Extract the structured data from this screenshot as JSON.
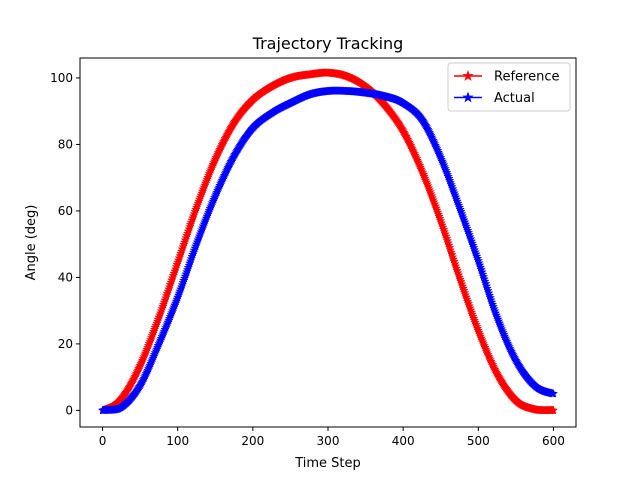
{
  "chart_data": {
    "type": "line",
    "title": "Trajectory Tracking",
    "xlabel": "Time Step",
    "ylabel": "Angle (deg)",
    "xlim": [
      -30,
      630
    ],
    "ylim": [
      -5,
      106
    ],
    "xticks": [
      0,
      100,
      200,
      300,
      400,
      500,
      600
    ],
    "xtick_labels": [
      "0",
      "100",
      "200",
      "300",
      "400",
      "500",
      "600"
    ],
    "yticks": [
      0,
      20,
      40,
      60,
      80,
      100
    ],
    "ytick_labels": [
      "0",
      "20",
      "40",
      "60",
      "80",
      "100"
    ],
    "grid": false,
    "legend_position": "top-right",
    "marker": "star",
    "series": [
      {
        "name": "Reference",
        "color": "#ff0000",
        "x": [
          0,
          25,
          50,
          75,
          100,
          125,
          150,
          175,
          200,
          225,
          250,
          275,
          300,
          325,
          350,
          375,
          400,
          425,
          450,
          475,
          500,
          525,
          550,
          575,
          600
        ],
        "y": [
          0,
          3.5,
          13.5,
          28,
          44.5,
          61,
          75.5,
          86.5,
          93.5,
          97.5,
          100,
          101,
          101.5,
          100.5,
          97.5,
          92,
          84,
          72,
          57,
          40,
          24,
          11,
          3,
          0.3,
          0
        ]
      },
      {
        "name": "Actual",
        "color": "#0000ff",
        "x": [
          0,
          25,
          50,
          75,
          100,
          125,
          150,
          175,
          200,
          225,
          250,
          275,
          300,
          325,
          350,
          375,
          400,
          425,
          450,
          475,
          500,
          525,
          550,
          575,
          600
        ],
        "y": [
          0,
          1,
          7.5,
          20,
          34,
          50,
          64.5,
          76.5,
          85,
          89.5,
          92.5,
          95,
          96,
          96,
          95.5,
          94.5,
          92.5,
          87.5,
          76,
          61,
          45,
          28,
          15,
          7.5,
          5
        ]
      }
    ]
  }
}
